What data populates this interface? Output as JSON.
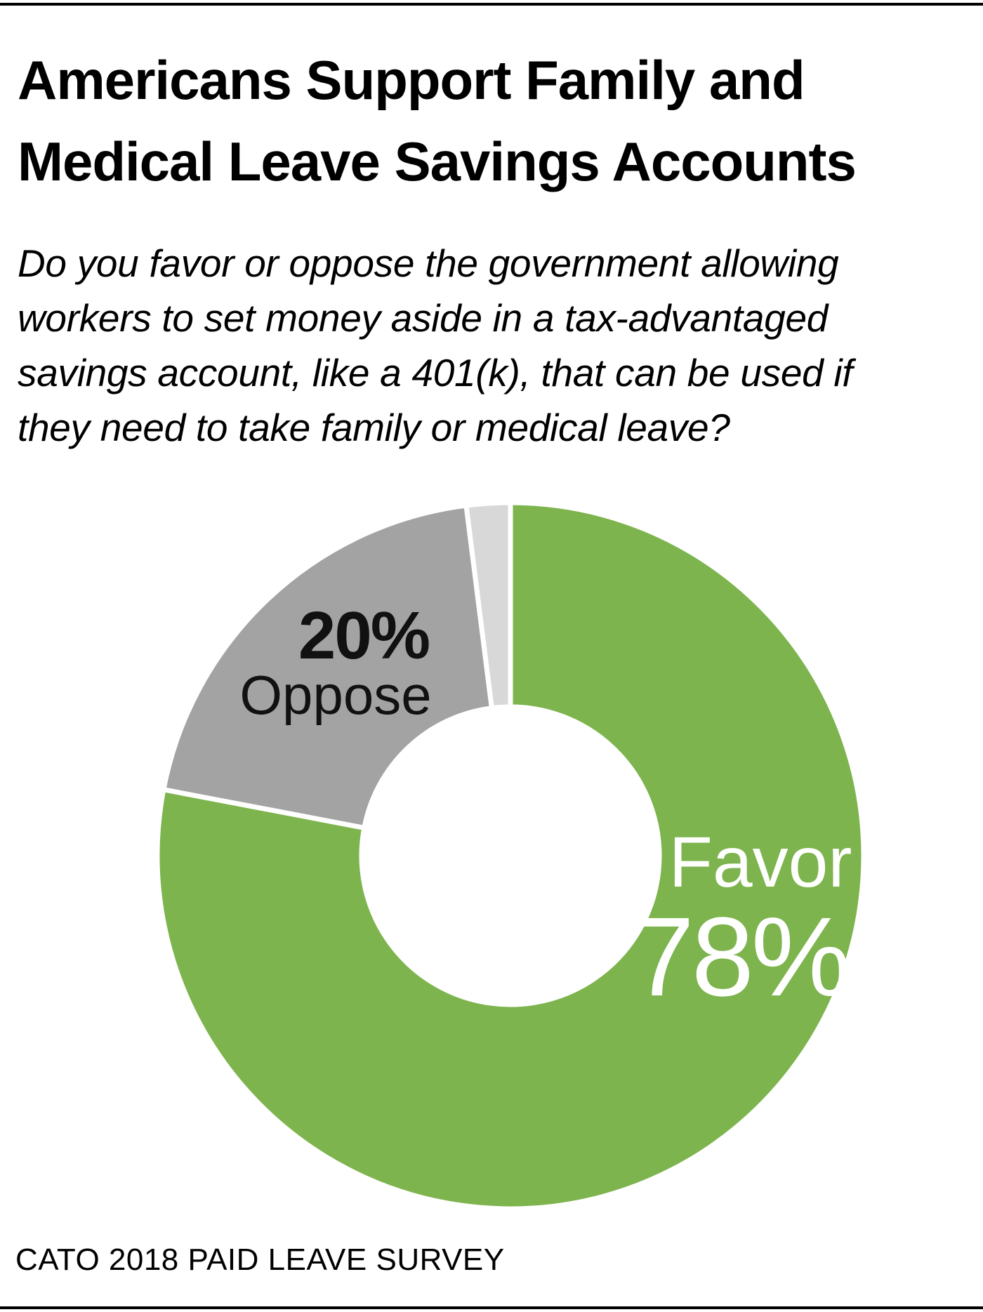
{
  "header": {
    "title_line1": "Americans Support Family and",
    "title_line2": "Medical Leave Savings Accounts"
  },
  "question": {
    "line1": "Do you favor or oppose the government allowing",
    "line2": "workers to set money aside in a tax-advantaged",
    "line3": "savings account, like a 401(k), that can be used if",
    "line4": "they need to take family or medical leave?"
  },
  "chart_data": {
    "type": "pie",
    "categories": [
      "Favor",
      "Oppose",
      ""
    ],
    "values": [
      78,
      20,
      2
    ],
    "labels": [
      "78%",
      "20%",
      ""
    ],
    "colors": [
      "#7db44d",
      "#a3a3a3",
      "#d8d8d8"
    ]
  },
  "footer": {
    "source": "CATO 2018 PAID LEAVE SURVEY"
  }
}
